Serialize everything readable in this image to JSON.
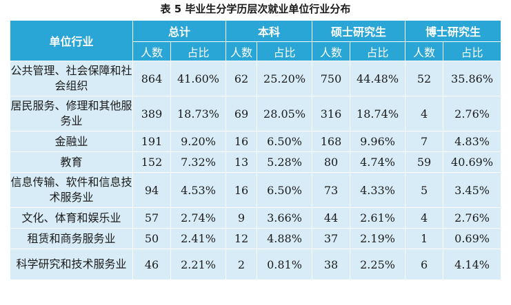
{
  "caption": "表 5 毕业生分学历层次就业单位行业分布",
  "header": {
    "industry": "单位行业",
    "groups": [
      "总计",
      "本科",
      "硕士研究生",
      "博士研究生"
    ],
    "count_label": "人数",
    "ratio_label": "占比"
  },
  "rows": [
    {
      "industry": "公共管理、社会保障和社会组织",
      "cells": [
        "864",
        "41.60%",
        "62",
        "25.20%",
        "750",
        "44.48%",
        "52",
        "35.86%"
      ]
    },
    {
      "industry": "居民服务、修理和其他服务业",
      "cells": [
        "389",
        "18.73%",
        "69",
        "28.05%",
        "316",
        "18.74%",
        "4",
        "2.76%"
      ]
    },
    {
      "industry": "金融业",
      "cells": [
        "191",
        "9.20%",
        "16",
        "6.50%",
        "168",
        "9.96%",
        "7",
        "4.83%"
      ]
    },
    {
      "industry": "教育",
      "cells": [
        "152",
        "7.32%",
        "13",
        "5.28%",
        "80",
        "4.74%",
        "59",
        "40.69%"
      ]
    },
    {
      "industry": "信息传输、软件和信息技术服务业",
      "cells": [
        "94",
        "4.53%",
        "16",
        "6.50%",
        "73",
        "4.33%",
        "5",
        "3.45%"
      ]
    },
    {
      "industry": "文化、体育和娱乐业",
      "cells": [
        "57",
        "2.74%",
        "9",
        "3.66%",
        "44",
        "2.61%",
        "4",
        "2.76%"
      ]
    },
    {
      "industry": "租赁和商务服务业",
      "cells": [
        "50",
        "2.41%",
        "12",
        "4.88%",
        "37",
        "2.19%",
        "1",
        "0.69%"
      ]
    },
    {
      "industry": "科学研究和技术服务业",
      "cells": [
        "46",
        "2.21%",
        "2",
        "0.81%",
        "38",
        "2.25%",
        "6",
        "4.14%"
      ]
    }
  ]
}
